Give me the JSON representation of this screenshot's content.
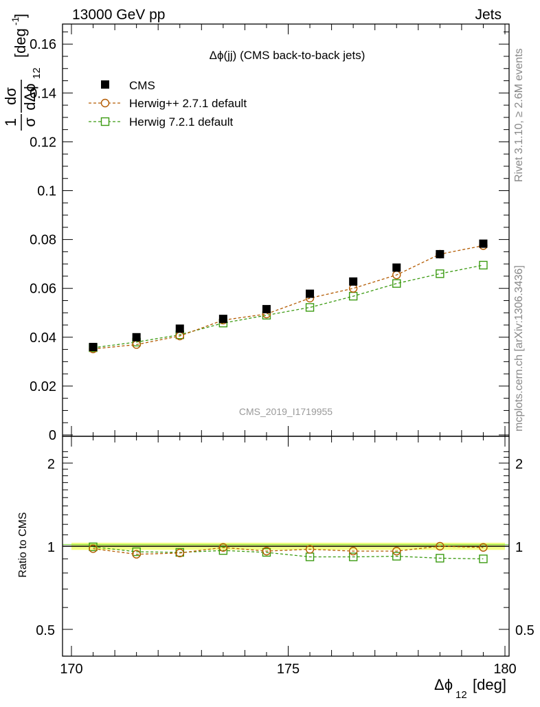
{
  "header": {
    "left": "13000 GeV pp",
    "right": "Jets"
  },
  "side_text": {
    "top": "Rivet 3.1.10, ≥ 2.6M events",
    "bottom": "mcplots.cern.ch [arXiv:1306.3436]"
  },
  "chart_data": [
    {
      "type": "scatter",
      "panel": "main",
      "title": "Δϕ(jj) (CMS back-to-back jets)",
      "watermark": "CMS_2019_I1719955",
      "ylabel_parts": {
        "frac_num": "1",
        "frac_den": "σ",
        "d_num": "dσ",
        "d_den": "dΔϕ",
        "sub": "12",
        "unit": "[deg",
        "unit_sup": "-1",
        "unit_close": "]"
      },
      "xlim": [
        170,
        180
      ],
      "ylim": [
        0,
        0.168
      ],
      "yticks": [
        0,
        0.02,
        0.04,
        0.06,
        0.08,
        0.1,
        0.12,
        0.14,
        0.16
      ],
      "ytick_labels": [
        "0",
        "0.02",
        "0.04",
        "0.06",
        "0.08",
        "0.1",
        "0.12",
        "0.14",
        "0.16"
      ],
      "legend_position": "top-left",
      "x": [
        170.5,
        171.5,
        172.5,
        173.5,
        174.5,
        175.5,
        176.5,
        177.5,
        178.5,
        179.5
      ],
      "series": [
        {
          "name": "CMS",
          "color": "#000000",
          "marker": "filled-square",
          "line": "none",
          "values": [
            0.036,
            0.04,
            0.0435,
            0.0475,
            0.0515,
            0.0578,
            0.0628,
            0.0685,
            0.074,
            0.0783
          ]
        },
        {
          "name": "Herwig++ 2.7.1 default",
          "color": "#b35a00",
          "marker": "open-circle",
          "line": "dashed",
          "values": [
            0.0352,
            0.037,
            0.0405,
            0.047,
            0.0495,
            0.056,
            0.06,
            0.0655,
            0.074,
            0.0775
          ]
        },
        {
          "name": "Herwig 7.2.1 default",
          "color": "#3a9a10",
          "marker": "open-square",
          "line": "dashed",
          "values": [
            0.0357,
            0.038,
            0.041,
            0.0458,
            0.049,
            0.0522,
            0.0568,
            0.062,
            0.066,
            0.0695
          ]
        }
      ]
    },
    {
      "type": "scatter",
      "panel": "ratio",
      "ylabel": "Ratio to CMS",
      "xlabel_parts": {
        "main": "Δϕ",
        "sub": "12",
        "unit": "[deg]"
      },
      "xlim": [
        170,
        180
      ],
      "xticks": [
        170,
        175,
        180
      ],
      "xtick_labels": [
        "170",
        "175",
        "180"
      ],
      "ylim": [
        0.35,
        2.3
      ],
      "ytick_labels_major": [
        "0.5",
        "1",
        "2"
      ],
      "yticks_major": [
        0.5,
        1,
        2
      ],
      "reference_line": 1,
      "reference_band": [
        0.97,
        1.03
      ],
      "band_color": "#f0ff60",
      "x": [
        170.5,
        171.5,
        172.5,
        173.5,
        174.5,
        175.5,
        176.5,
        177.5,
        178.5,
        179.5
      ],
      "series": [
        {
          "name": "Herwig++ 2.7.1 default",
          "color": "#b35a00",
          "marker": "open-circle",
          "line": "dashed",
          "values": [
            0.98,
            0.935,
            0.945,
            0.99,
            0.96,
            0.975,
            0.96,
            0.96,
            1.0,
            0.99
          ]
        },
        {
          "name": "Herwig 7.2.1 default",
          "color": "#3a9a10",
          "marker": "open-square",
          "line": "dashed",
          "values": [
            0.995,
            0.955,
            0.95,
            0.965,
            0.95,
            0.915,
            0.915,
            0.92,
            0.905,
            0.9
          ]
        }
      ]
    }
  ]
}
